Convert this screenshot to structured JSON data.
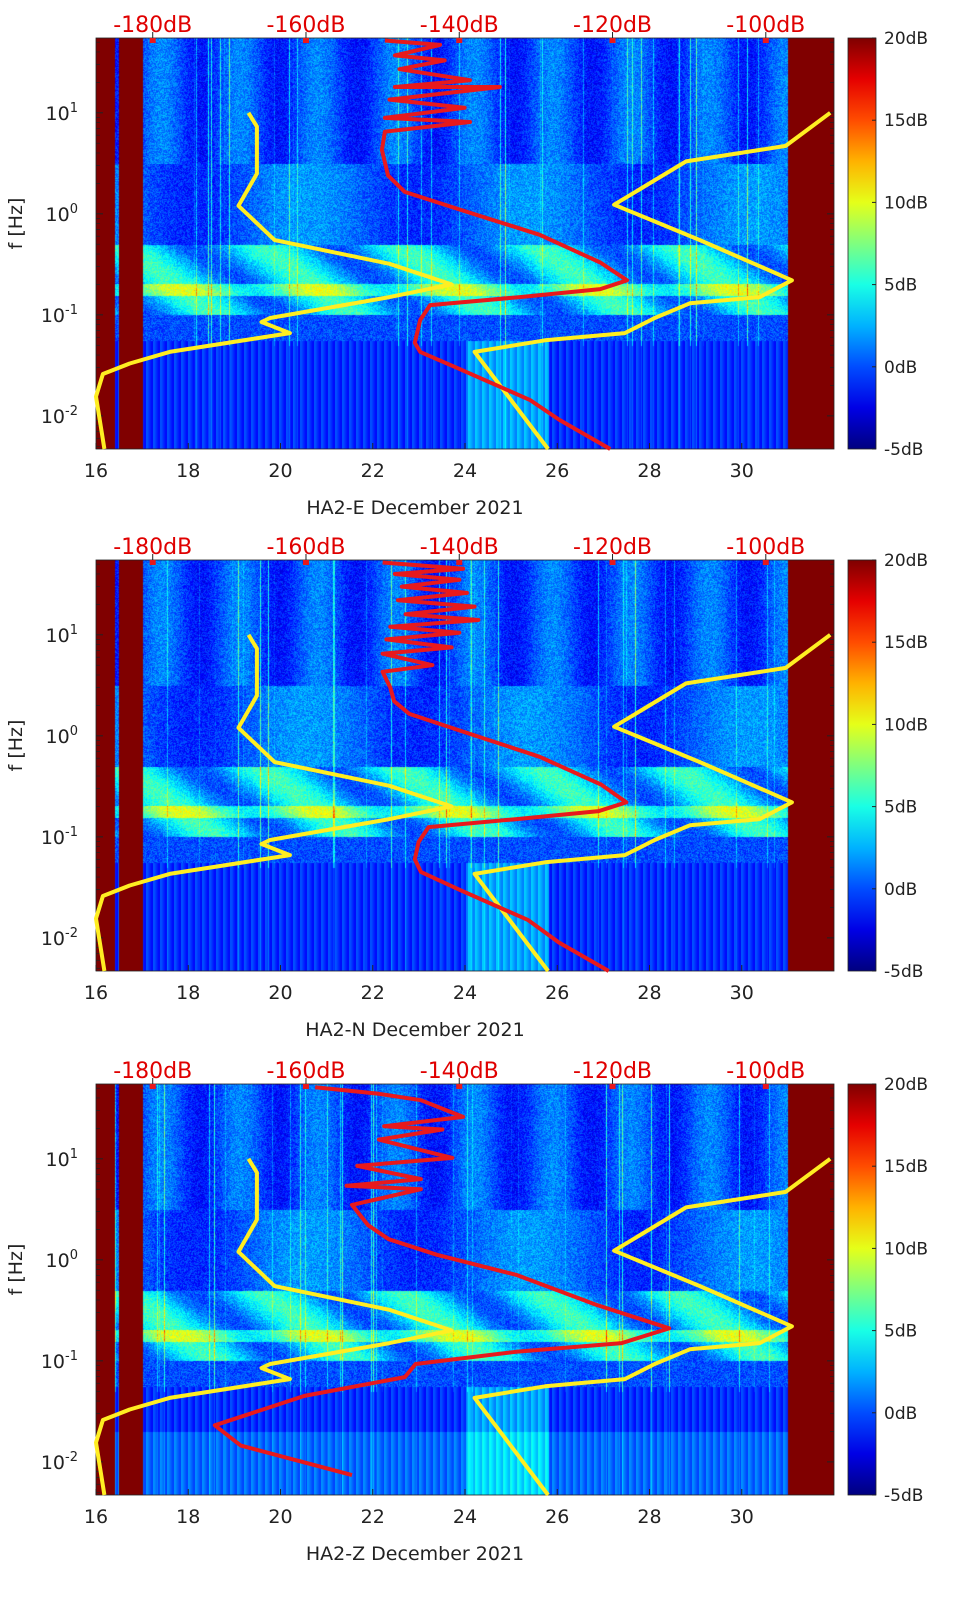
{
  "chart_data": [
    {
      "type": "heatmap",
      "panel": "HA2-E",
      "xlabel": "HA2-E December 2021",
      "ylabel": "f [Hz]",
      "red_curve": [
        [
          52,
          -149.7
        ],
        [
          47,
          -142.5
        ],
        [
          37,
          -148.4
        ],
        [
          33,
          -141.9
        ],
        [
          27,
          -147.8
        ],
        [
          21,
          -138.6
        ],
        [
          18,
          -148.4
        ],
        [
          18,
          -134.7
        ],
        [
          13.5,
          -149.1
        ],
        [
          11.2,
          -139.3
        ],
        [
          8.9,
          -149.7
        ],
        [
          8.1,
          -138.6
        ],
        [
          6.5,
          -149.7
        ],
        [
          4.3,
          -150.1
        ],
        [
          2.4,
          -149.3
        ],
        [
          1.65,
          -147.1
        ],
        [
          1.1,
          -139.9
        ],
        [
          0.62,
          -129.5
        ],
        [
          0.33,
          -121.6
        ],
        [
          0.22,
          -118.1
        ],
        [
          0.18,
          -121.6
        ],
        [
          0.15,
          -132.1
        ],
        [
          0.125,
          -143.8
        ],
        [
          0.089,
          -145.1
        ],
        [
          0.053,
          -145.8
        ],
        [
          0.043,
          -145.1
        ],
        [
          0.029,
          -139.9
        ],
        [
          0.0144,
          -130.8
        ],
        [
          0.0091,
          -126.9
        ],
        [
          0.0047,
          -120.3
        ]
      ]
    },
    {
      "type": "heatmap",
      "panel": "HA2-N",
      "xlabel": "HA2-N December 2021",
      "ylabel": "f [Hz]",
      "red_curve": [
        [
          52,
          -150
        ],
        [
          45,
          -139.5
        ],
        [
          40,
          -148.4
        ],
        [
          35,
          -140
        ],
        [
          30,
          -147.5
        ],
        [
          26,
          -139
        ],
        [
          22,
          -148
        ],
        [
          19,
          -138
        ],
        [
          16,
          -147
        ],
        [
          14,
          -137.5
        ],
        [
          12,
          -149
        ],
        [
          10.5,
          -140
        ],
        [
          9,
          -149.5
        ],
        [
          7.5,
          -141
        ],
        [
          6.5,
          -150
        ],
        [
          5,
          -143.5
        ],
        [
          4.3,
          -150
        ],
        [
          3,
          -149
        ],
        [
          2.2,
          -148.5
        ],
        [
          1.65,
          -146.5
        ],
        [
          1.1,
          -139.5
        ],
        [
          0.62,
          -129.5
        ],
        [
          0.33,
          -121.5
        ],
        [
          0.22,
          -118.2
        ],
        [
          0.18,
          -121.8
        ],
        [
          0.15,
          -132.5
        ],
        [
          0.125,
          -144
        ],
        [
          0.089,
          -145.3
        ],
        [
          0.06,
          -145.8
        ],
        [
          0.045,
          -145
        ],
        [
          0.03,
          -140
        ],
        [
          0.015,
          -131
        ],
        [
          0.009,
          -127
        ],
        [
          0.0047,
          -120.5
        ]
      ]
    },
    {
      "type": "heatmap",
      "panel": "HA2-Z",
      "xlabel": "HA2-Z December 2021",
      "ylabel": "f [Hz]",
      "red_curve": [
        [
          51,
          -158.8
        ],
        [
          44,
          -150.5
        ],
        [
          38,
          -145
        ],
        [
          26,
          -139.5
        ],
        [
          21,
          -149.8
        ],
        [
          19.5,
          -142.2
        ],
        [
          15.5,
          -150.5
        ],
        [
          10.2,
          -140.9
        ],
        [
          8.5,
          -153.3
        ],
        [
          6.3,
          -145
        ],
        [
          5.4,
          -154.7
        ],
        [
          5,
          -145
        ],
        [
          3.5,
          -154
        ],
        [
          2.2,
          -151.9
        ],
        [
          1.6,
          -149.2
        ],
        [
          1.12,
          -142.9
        ],
        [
          0.71,
          -132.6
        ],
        [
          0.36,
          -122.2
        ],
        [
          0.21,
          -112.6
        ],
        [
          0.15,
          -118.8
        ],
        [
          0.123,
          -132.6
        ],
        [
          0.093,
          -145.7
        ],
        [
          0.069,
          -147.1
        ],
        [
          0.045,
          -160.2
        ],
        [
          0.023,
          -171.9
        ],
        [
          0.0145,
          -168.5
        ],
        [
          0.0074,
          -154
        ]
      ]
    }
  ],
  "shared": {
    "x_ticks": [
      "16",
      "18",
      "20",
      "22",
      "24",
      "26",
      "28",
      "30"
    ],
    "x_tick_values": [
      16,
      18,
      20,
      22,
      24,
      26,
      28,
      30
    ],
    "xlim": [
      16,
      32
    ],
    "top_ticks": [
      "-180dB",
      "-160dB",
      "-140dB",
      "-120dB",
      "-100dB"
    ],
    "top_tick_values": [
      -180,
      -160,
      -140,
      -120,
      -100
    ],
    "top_lim": [
      -187.4,
      -91.1
    ],
    "ylim": [
      0.0047,
      55
    ],
    "y_tick_exponents": [
      "1",
      "0",
      "-1",
      "-2"
    ],
    "y_tick_values": [
      10,
      1,
      0.1,
      0.01
    ],
    "colorbar_ticks": [
      "20dB",
      "15dB",
      "10dB",
      "5dB",
      "0dB",
      "-5dB"
    ],
    "colorbar_values": [
      20,
      15,
      10,
      5,
      0,
      -5
    ],
    "clim": [
      -5,
      20
    ],
    "low_noise_model": [
      [
        10,
        -167.5
      ],
      [
        7.3,
        -166.4
      ],
      [
        2.5,
        -166.4
      ],
      [
        1.2,
        -168.8
      ],
      [
        0.55,
        -164.1
      ],
      [
        0.32,
        -149.1
      ],
      [
        0.2,
        -141.0
      ],
      [
        0.15,
        -149.1
      ],
      [
        0.093,
        -164.7
      ],
      [
        0.085,
        -165.8
      ],
      [
        0.066,
        -162.1
      ],
      [
        0.043,
        -177.8
      ],
      [
        0.033,
        -183.0
      ],
      [
        0.026,
        -186.5
      ],
      [
        0.0155,
        -187.4
      ],
      [
        0.0047,
        -186.3
      ]
    ],
    "high_noise_model": [
      [
        10,
        -91.6
      ],
      [
        4.7,
        -97.4
      ],
      [
        3.3,
        -110.4
      ],
      [
        1.23,
        -119.8
      ],
      [
        0.55,
        -108.6
      ],
      [
        0.22,
        -96.6
      ],
      [
        0.15,
        -100.8
      ],
      [
        0.13,
        -109.9
      ],
      [
        0.093,
        -114.5
      ],
      [
        0.066,
        -118.4
      ],
      [
        0.056,
        -128.8
      ],
      [
        0.043,
        -138.0
      ],
      [
        0.0047,
        -128.4
      ]
    ],
    "no_data_days": [
      [
        16,
        17
      ],
      [
        31,
        32
      ]
    ],
    "colors": {
      "red_curve": "#e8191c",
      "noise_model": "#ffee22",
      "top_labels": "#e00000",
      "no_data": "#800000"
    }
  }
}
